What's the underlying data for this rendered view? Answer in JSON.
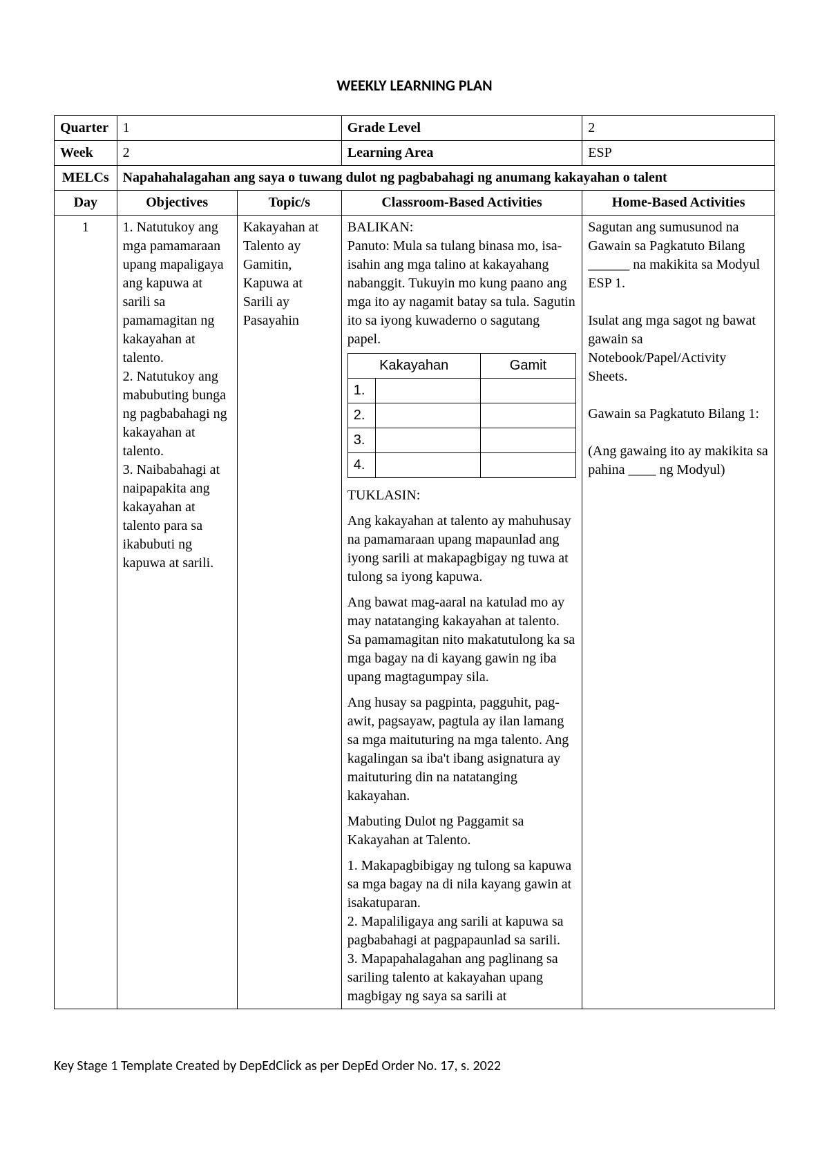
{
  "title": "WEEKLY LEARNING PLAN",
  "labels": {
    "quarter": "Quarter",
    "week": "Week",
    "melcs": "MELCs",
    "day": "Day",
    "objectives": "Objectives",
    "topics": "Topic/s",
    "classroom": "Classroom-Based Activities",
    "home": "Home-Based Activities",
    "gradeLevel": "Grade Level",
    "learningArea": "Learning Area"
  },
  "header": {
    "quarter": "1",
    "gradeLevel": "2",
    "week": "2",
    "learningArea": "ESP",
    "melcs": "Napahahalagahan ang saya o  tuwang dulot ng pagbabahagi ng anumang kakayahan o talent"
  },
  "row": {
    "day": "1",
    "objectives": "1. Natutukoy ang mga pamamaraan upang mapaligaya ang kapuwa at sarili sa pamamagitan ng kakayahan at talento.\n2. Natutukoy ang mabubuting bunga ng pagbabahagi ng kakayahan at talento.\n3. Naibabahagi at naipapakita ang kakayahan at talento para sa ikabubuti ng kapuwa at sarili.",
    "topic": "Kakayahan at Talento ay Gamitin, Kapuwa at Sarili ay Pasayahin",
    "classroom": {
      "balikan_h": "BALIKAN:",
      "balikan_p": "Panuto: Mula sa tulang binasa mo, isa-isahin ang mga talino at kakayahang nabanggit. Tukuyin mo kung paano ang mga ito ay nagamit batay sa tula. Sagutin ito sa iyong kuwaderno o sagutang papel.",
      "innerHeaders": {
        "c1": "Kakayahan",
        "c2": "Gamit"
      },
      "innerRows": [
        "1.",
        "2.",
        "3.",
        "4."
      ],
      "tuklasin_h": "TUKLASIN:",
      "p1": "Ang kakayahan at talento ay mahuhusay na pamamaraan upang mapaunlad ang iyong sarili at makapagbigay ng tuwa at tulong sa iyong kapuwa.",
      "p2": "Ang bawat mag-aaral na katulad mo ay may natatanging kakayahan at talento. Sa pamamagitan nito makatutulong ka sa mga bagay na di kayang gawin ng iba upang magtagumpay sila.",
      "p3": "Ang husay sa pagpinta, pagguhit, pag- awit, pagsayaw, pagtula ay ilan lamang sa mga maituturing na mga talento. Ang kagalingan sa iba't ibang asignatura ay maituturing din na natatanging kakayahan.",
      "p4": "Mabuting Dulot ng Paggamit sa Kakayahan at Talento.",
      "p5": "1. Makapagbibigay ng tulong sa kapuwa sa mga bagay na di nila kayang gawin at isakatuparan.\n2. Mapaliligaya ang sarili at kapuwa sa pagbabahagi at pagpapaunlad sa sarili.\n3. Mapapahalagahan ang paglinang sa sariling talento at kakayahan upang magbigay ng saya sa sarili at"
    },
    "home": "Sagutan ang sumusunod na Gawain sa Pagkatuto Bilang ______ na makikita sa Modyul ESP 1.\n\nIsulat ang mga sagot ng bawat gawain sa Notebook/Papel/Activity Sheets.\n\nGawain sa Pagkatuto Bilang 1:\n\n(Ang gawaing ito ay makikita sa pahina ____ ng Modyul)"
  },
  "footer": "Key Stage 1 Template Created by DepEdClick as per DepEd Order No. 17, s. 2022"
}
